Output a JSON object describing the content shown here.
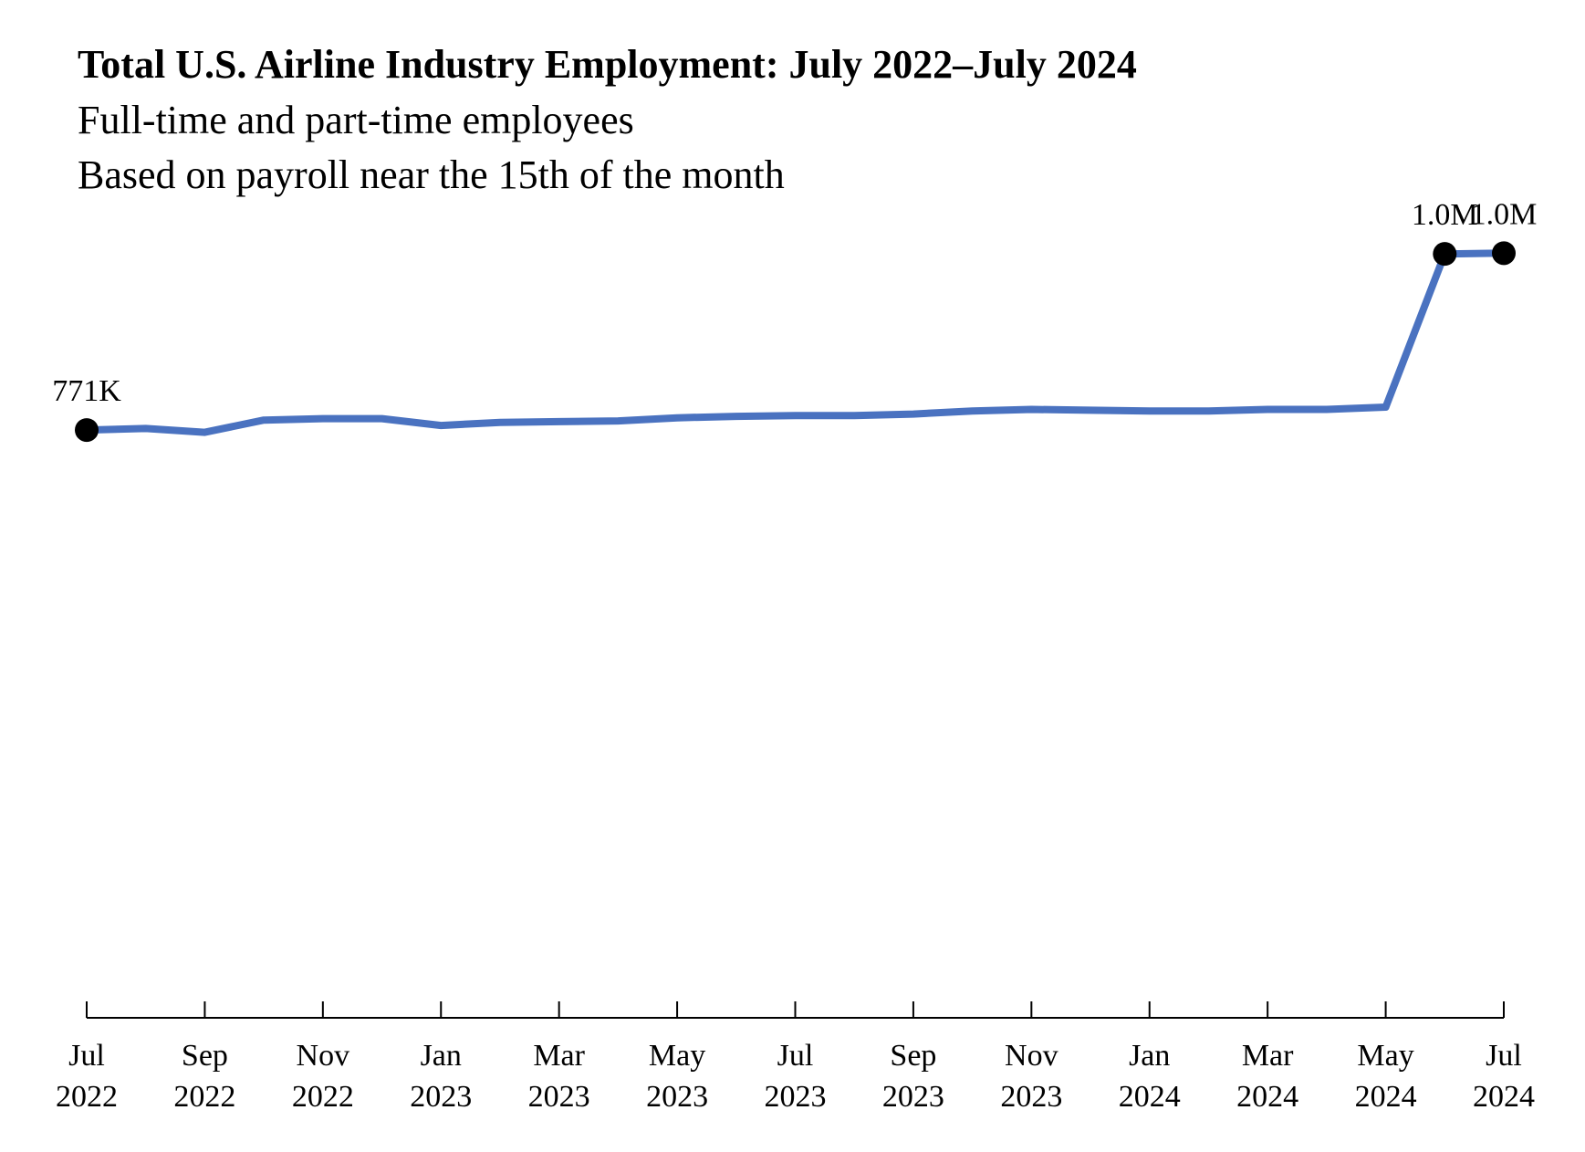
{
  "chart_data": {
    "type": "line",
    "title": "Total U.S. Airline Industry Employment: July 2022–July 2024",
    "subtitle_lines": [
      "Full-time and part-time employees",
      "Based on payroll near the 15th of the month"
    ],
    "xlabel": "",
    "ylabel": "",
    "x": [
      "2022-07",
      "2022-08",
      "2022-09",
      "2022-10",
      "2022-11",
      "2022-12",
      "2023-01",
      "2023-02",
      "2023-03",
      "2023-04",
      "2023-05",
      "2023-06",
      "2023-07",
      "2023-08",
      "2023-09",
      "2023-10",
      "2023-11",
      "2023-12",
      "2024-01",
      "2024-02",
      "2024-03",
      "2024-04",
      "2024-05",
      "2024-06",
      "2024-07"
    ],
    "series": [
      {
        "name": "",
        "color": "#4a72c0",
        "values": [
          771000,
          773000,
          768000,
          784000,
          786000,
          786000,
          777000,
          781000,
          782000,
          783000,
          787000,
          789000,
          790000,
          790000,
          792000,
          796000,
          798000,
          797000,
          796000,
          796000,
          798000,
          798000,
          801000,
          1002000,
          1003000
        ]
      }
    ],
    "ylim": [
      0,
      1100000
    ],
    "x_ticks": [
      {
        "month": "Jul",
        "year": "2022",
        "index": 0
      },
      {
        "month": "Sep",
        "year": "2022",
        "index": 2
      },
      {
        "month": "Nov",
        "year": "2022",
        "index": 4
      },
      {
        "month": "Jan",
        "year": "2023",
        "index": 6
      },
      {
        "month": "Mar",
        "year": "2023",
        "index": 8
      },
      {
        "month": "May",
        "year": "2023",
        "index": 10
      },
      {
        "month": "Jul",
        "year": "2023",
        "index": 12
      },
      {
        "month": "Sep",
        "year": "2023",
        "index": 14
      },
      {
        "month": "Nov",
        "year": "2023",
        "index": 16
      },
      {
        "month": "Jan",
        "year": "2024",
        "index": 18
      },
      {
        "month": "Mar",
        "year": "2024",
        "index": 20
      },
      {
        "month": "May",
        "year": "2024",
        "index": 22
      },
      {
        "month": "Jul",
        "year": "2024",
        "index": 24
      }
    ],
    "annotations": [
      {
        "index": 0,
        "label": "771K"
      },
      {
        "index": 23,
        "label": "1.0M"
      },
      {
        "index": 24,
        "label": "1.0M"
      }
    ],
    "marker_color": "#000000",
    "axis_color": "#000000",
    "grid": false,
    "legend": "none"
  }
}
